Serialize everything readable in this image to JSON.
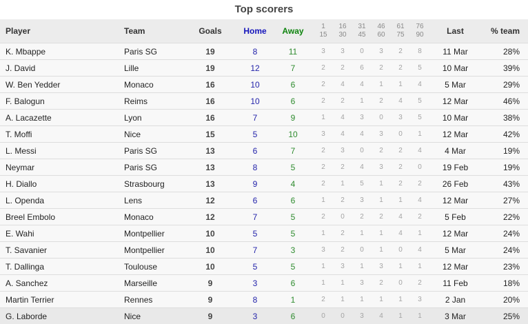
{
  "title": "Top scorers",
  "columns": {
    "player": "Player",
    "team": "Team",
    "goals": "Goals",
    "home": "Home",
    "away": "Away",
    "last": "Last",
    "pct_team": "% team"
  },
  "minute_bands": [
    {
      "from": "1",
      "to": "15"
    },
    {
      "from": "16",
      "to": "30"
    },
    {
      "from": "31",
      "to": "45"
    },
    {
      "from": "46",
      "to": "60"
    },
    {
      "from": "61",
      "to": "75"
    },
    {
      "from": "76",
      "to": "90"
    }
  ],
  "colors": {
    "home_accent": "#1414bb",
    "away_accent": "#0e840e",
    "header_bg": "#ececec",
    "row_bg": "#f8f8f8",
    "last_row_bg": "#e9e9e9"
  },
  "rows": [
    {
      "player": "K. Mbappe",
      "team": "Paris SG",
      "goals": 19,
      "home": 8,
      "away": 11,
      "minutes": [
        3,
        3,
        0,
        3,
        2,
        8
      ],
      "last": "11 Mar",
      "pct_team": "28%"
    },
    {
      "player": "J. David",
      "team": "Lille",
      "goals": 19,
      "home": 12,
      "away": 7,
      "minutes": [
        2,
        2,
        6,
        2,
        2,
        5
      ],
      "last": "10 Mar",
      "pct_team": "39%"
    },
    {
      "player": "W. Ben Yedder",
      "team": "Monaco",
      "goals": 16,
      "home": 10,
      "away": 6,
      "minutes": [
        2,
        4,
        4,
        1,
        1,
        4
      ],
      "last": "5 Mar",
      "pct_team": "29%"
    },
    {
      "player": "F. Balogun",
      "team": "Reims",
      "goals": 16,
      "home": 10,
      "away": 6,
      "minutes": [
        2,
        2,
        1,
        2,
        4,
        5
      ],
      "last": "12 Mar",
      "pct_team": "46%"
    },
    {
      "player": "A. Lacazette",
      "team": "Lyon",
      "goals": 16,
      "home": 7,
      "away": 9,
      "minutes": [
        1,
        4,
        3,
        0,
        3,
        5
      ],
      "last": "10 Mar",
      "pct_team": "38%"
    },
    {
      "player": "T. Moffi",
      "team": "Nice",
      "goals": 15,
      "home": 5,
      "away": 10,
      "minutes": [
        3,
        4,
        4,
        3,
        0,
        1
      ],
      "last": "12 Mar",
      "pct_team": "42%"
    },
    {
      "player": "L. Messi",
      "team": "Paris SG",
      "goals": 13,
      "home": 6,
      "away": 7,
      "minutes": [
        2,
        3,
        0,
        2,
        2,
        4
      ],
      "last": "4 Mar",
      "pct_team": "19%"
    },
    {
      "player": "Neymar",
      "team": "Paris SG",
      "goals": 13,
      "home": 8,
      "away": 5,
      "minutes": [
        2,
        2,
        4,
        3,
        2,
        0
      ],
      "last": "19 Feb",
      "pct_team": "19%"
    },
    {
      "player": "H. Diallo",
      "team": "Strasbourg",
      "goals": 13,
      "home": 9,
      "away": 4,
      "minutes": [
        2,
        1,
        5,
        1,
        2,
        2
      ],
      "last": "26 Feb",
      "pct_team": "43%"
    },
    {
      "player": "L. Openda",
      "team": "Lens",
      "goals": 12,
      "home": 6,
      "away": 6,
      "minutes": [
        1,
        2,
        3,
        1,
        1,
        4
      ],
      "last": "12 Mar",
      "pct_team": "27%"
    },
    {
      "player": "Breel Embolo",
      "team": "Monaco",
      "goals": 12,
      "home": 7,
      "away": 5,
      "minutes": [
        2,
        0,
        2,
        2,
        4,
        2
      ],
      "last": "5 Feb",
      "pct_team": "22%"
    },
    {
      "player": "E. Wahi",
      "team": "Montpellier",
      "goals": 10,
      "home": 5,
      "away": 5,
      "minutes": [
        1,
        2,
        1,
        1,
        4,
        1
      ],
      "last": "12 Mar",
      "pct_team": "24%"
    },
    {
      "player": "T. Savanier",
      "team": "Montpellier",
      "goals": 10,
      "home": 7,
      "away": 3,
      "minutes": [
        3,
        2,
        0,
        1,
        0,
        4
      ],
      "last": "5 Mar",
      "pct_team": "24%"
    },
    {
      "player": "T. Dallinga",
      "team": "Toulouse",
      "goals": 10,
      "home": 5,
      "away": 5,
      "minutes": [
        1,
        3,
        1,
        3,
        1,
        1
      ],
      "last": "12 Mar",
      "pct_team": "23%"
    },
    {
      "player": "A. Sanchez",
      "team": "Marseille",
      "goals": 9,
      "home": 3,
      "away": 6,
      "minutes": [
        1,
        1,
        3,
        2,
        0,
        2
      ],
      "last": "11 Feb",
      "pct_team": "18%"
    },
    {
      "player": "Martin Terrier",
      "team": "Rennes",
      "goals": 9,
      "home": 8,
      "away": 1,
      "minutes": [
        2,
        1,
        1,
        1,
        1,
        3
      ],
      "last": "2 Jan",
      "pct_team": "20%"
    },
    {
      "player": "G. Laborde",
      "team": "Nice",
      "goals": 9,
      "home": 3,
      "away": 6,
      "minutes": [
        0,
        0,
        3,
        4,
        1,
        1
      ],
      "last": "3 Mar",
      "pct_team": "25%"
    }
  ]
}
